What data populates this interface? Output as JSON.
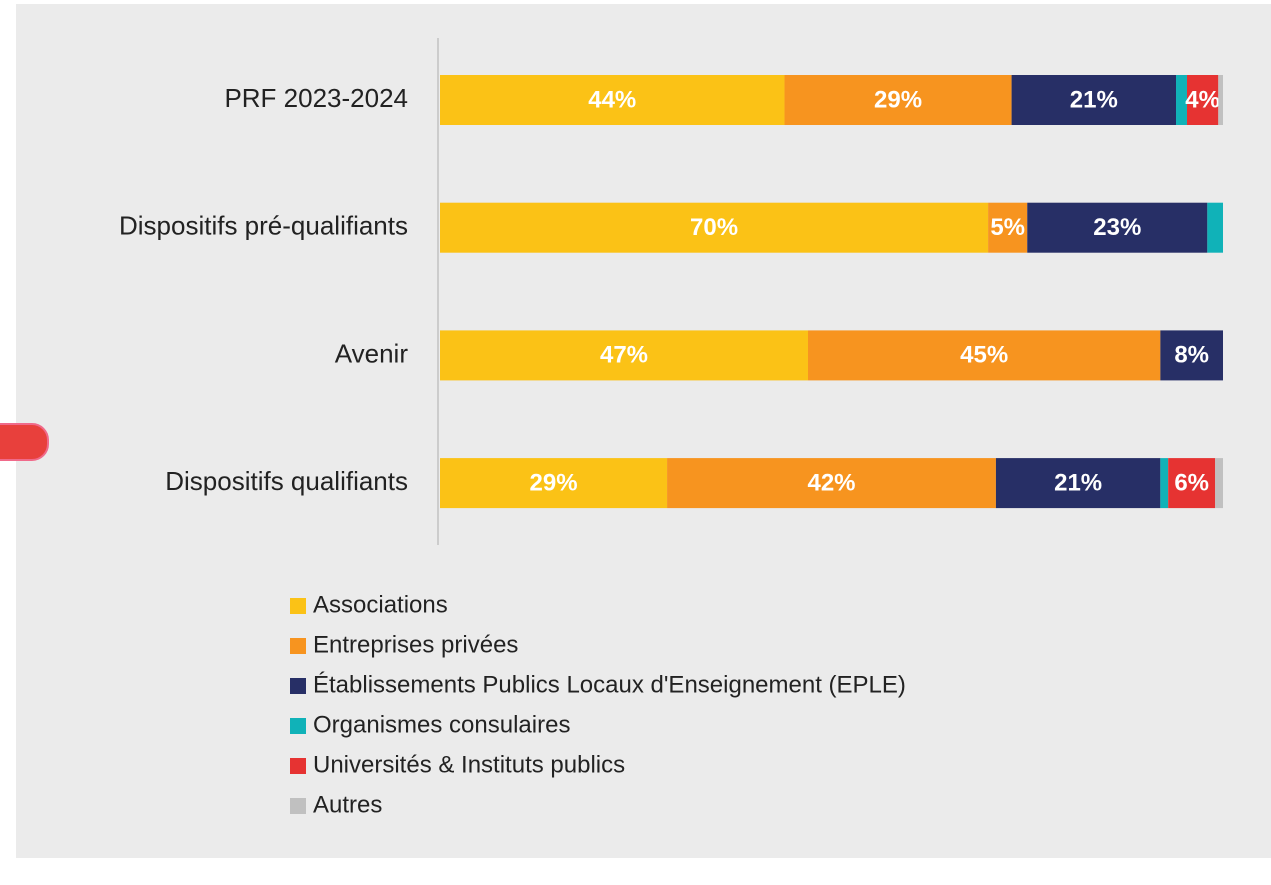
{
  "chart_data": {
    "type": "stacked-bar-horizontal",
    "categories": [
      "PRF 2023-2024",
      "Dispositifs pré-qualifiants",
      "Avenir",
      "Dispositifs qualifiants"
    ],
    "series": [
      {
        "name": "Associations",
        "color": "#fbc216",
        "values": [
          44,
          70,
          47,
          29
        ],
        "value_labels": [
          "44%",
          "70%",
          "47%",
          "29%"
        ]
      },
      {
        "name": "Entreprises privées",
        "color": "#f7941f",
        "values": [
          29,
          5,
          45,
          42
        ],
        "value_labels": [
          "29%",
          "5%",
          "45%",
          "42%"
        ]
      },
      {
        "name": "Établissements Publics Locaux d'Enseignement (EPLE)",
        "color": "#272f66",
        "values": [
          21,
          23,
          8,
          21
        ],
        "value_labels": [
          "21%",
          "23%",
          "8%",
          "21%"
        ]
      },
      {
        "name": "Organismes consulaires",
        "color": "#10b2b8",
        "values": [
          1.4,
          2,
          0,
          1
        ],
        "value_labels": [
          null,
          null,
          null,
          null
        ]
      },
      {
        "name": "Universités & Instituts publics",
        "color": "#e63332",
        "values": [
          4,
          0,
          0,
          6
        ],
        "value_labels": [
          "4%",
          null,
          null,
          "6%"
        ]
      },
      {
        "name": "Autres",
        "color": "#c0c0c0",
        "values": [
          0.6,
          0,
          0,
          1
        ],
        "value_labels": [
          null,
          null,
          null,
          null
        ]
      }
    ]
  }
}
